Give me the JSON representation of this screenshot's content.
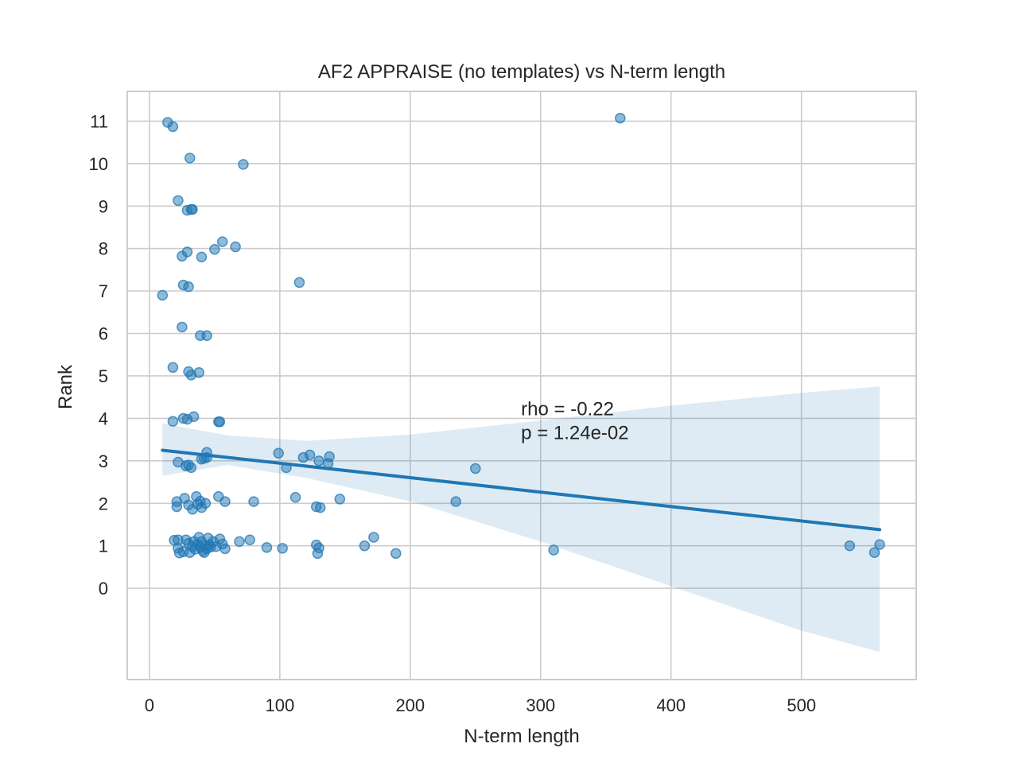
{
  "chart_data": {
    "type": "scatter",
    "title": "AF2 APPRAISE (no templates) vs N-term length",
    "xlabel": "N-term length",
    "ylabel": "Rank",
    "xlim": [
      -17,
      588
    ],
    "ylim": [
      -2.15,
      11.7
    ],
    "xticks": [
      0,
      100,
      200,
      300,
      400,
      500
    ],
    "yticks": [
      0,
      1,
      2,
      3,
      4,
      5,
      6,
      7,
      8,
      9,
      10,
      11
    ],
    "grid": true,
    "annotation": {
      "line1": "rho = -0.22",
      "line2": "p = 1.24e-02",
      "x": 285,
      "y": 4.3
    },
    "colors": {
      "points": "#1f77b4",
      "regression_line": "#1f77b4",
      "ci_band": "#1f77b4",
      "grid": "#cccccc",
      "spine": "#cccccc",
      "text": "#262626"
    },
    "regression": {
      "x": [
        10,
        560
      ],
      "y": [
        3.25,
        1.38
      ],
      "ci": [
        {
          "x": 10,
          "lo": 2.65,
          "hi": 3.88
        },
        {
          "x": 60,
          "lo": 2.9,
          "hi": 3.6
        },
        {
          "x": 120,
          "lo": 2.6,
          "hi": 3.47
        },
        {
          "x": 200,
          "lo": 2.05,
          "hi": 3.62
        },
        {
          "x": 300,
          "lo": 1.1,
          "hi": 3.95
        },
        {
          "x": 400,
          "lo": 0.05,
          "hi": 4.3
        },
        {
          "x": 500,
          "lo": -1.0,
          "hi": 4.6
        },
        {
          "x": 560,
          "lo": -1.5,
          "hi": 4.75
        }
      ]
    },
    "points": [
      {
        "x": 14,
        "y": 10.97
      },
      {
        "x": 18,
        "y": 10.87
      },
      {
        "x": 31,
        "y": 10.13
      },
      {
        "x": 72,
        "y": 9.98
      },
      {
        "x": 361,
        "y": 11.07
      },
      {
        "x": 22,
        "y": 9.13
      },
      {
        "x": 29,
        "y": 8.9
      },
      {
        "x": 32,
        "y": 8.92
      },
      {
        "x": 33,
        "y": 8.92
      },
      {
        "x": 56,
        "y": 8.16
      },
      {
        "x": 66,
        "y": 8.04
      },
      {
        "x": 50,
        "y": 7.98
      },
      {
        "x": 29,
        "y": 7.92
      },
      {
        "x": 25,
        "y": 7.82
      },
      {
        "x": 40,
        "y": 7.8
      },
      {
        "x": 115,
        "y": 7.2
      },
      {
        "x": 26,
        "y": 7.14
      },
      {
        "x": 30,
        "y": 7.1
      },
      {
        "x": 10,
        "y": 6.9
      },
      {
        "x": 25,
        "y": 6.15
      },
      {
        "x": 39,
        "y": 5.95
      },
      {
        "x": 44,
        "y": 5.95
      },
      {
        "x": 18,
        "y": 5.2
      },
      {
        "x": 30,
        "y": 5.1
      },
      {
        "x": 38,
        "y": 5.08
      },
      {
        "x": 32,
        "y": 5.02
      },
      {
        "x": 18,
        "y": 3.93
      },
      {
        "x": 26,
        "y": 4.0
      },
      {
        "x": 29,
        "y": 3.98
      },
      {
        "x": 34,
        "y": 4.04
      },
      {
        "x": 53,
        "y": 3.92
      },
      {
        "x": 54,
        "y": 3.92
      },
      {
        "x": 44,
        "y": 3.2
      },
      {
        "x": 42,
        "y": 3.06
      },
      {
        "x": 44,
        "y": 3.08
      },
      {
        "x": 40,
        "y": 3.04
      },
      {
        "x": 22,
        "y": 2.97
      },
      {
        "x": 28,
        "y": 2.88
      },
      {
        "x": 30,
        "y": 2.9
      },
      {
        "x": 32,
        "y": 2.84
      },
      {
        "x": 99,
        "y": 3.18
      },
      {
        "x": 105,
        "y": 2.84
      },
      {
        "x": 118,
        "y": 3.08
      },
      {
        "x": 123,
        "y": 3.14
      },
      {
        "x": 130,
        "y": 3.0
      },
      {
        "x": 137,
        "y": 2.94
      },
      {
        "x": 138,
        "y": 3.1
      },
      {
        "x": 250,
        "y": 2.82
      },
      {
        "x": 235,
        "y": 2.04
      },
      {
        "x": 21,
        "y": 2.04
      },
      {
        "x": 21,
        "y": 1.92
      },
      {
        "x": 27,
        "y": 2.12
      },
      {
        "x": 30,
        "y": 1.96
      },
      {
        "x": 33,
        "y": 1.86
      },
      {
        "x": 36,
        "y": 2.16
      },
      {
        "x": 37,
        "y": 1.98
      },
      {
        "x": 39,
        "y": 2.05
      },
      {
        "x": 40,
        "y": 1.9
      },
      {
        "x": 43,
        "y": 2.0
      },
      {
        "x": 53,
        "y": 2.16
      },
      {
        "x": 58,
        "y": 2.04
      },
      {
        "x": 80,
        "y": 2.04
      },
      {
        "x": 112,
        "y": 2.14
      },
      {
        "x": 128,
        "y": 1.92
      },
      {
        "x": 131,
        "y": 1.9
      },
      {
        "x": 146,
        "y": 2.1
      },
      {
        "x": 19,
        "y": 1.13
      },
      {
        "x": 22,
        "y": 1.14
      },
      {
        "x": 22,
        "y": 0.94
      },
      {
        "x": 23,
        "y": 0.83
      },
      {
        "x": 26,
        "y": 0.86
      },
      {
        "x": 28,
        "y": 1.14
      },
      {
        "x": 30,
        "y": 1.06
      },
      {
        "x": 31,
        "y": 0.84
      },
      {
        "x": 33,
        "y": 0.98
      },
      {
        "x": 34,
        "y": 1.1
      },
      {
        "x": 35,
        "y": 0.92
      },
      {
        "x": 37,
        "y": 1.03
      },
      {
        "x": 38,
        "y": 1.2
      },
      {
        "x": 39,
        "y": 0.96
      },
      {
        "x": 40,
        "y": 1.1
      },
      {
        "x": 41,
        "y": 0.88
      },
      {
        "x": 42,
        "y": 0.84
      },
      {
        "x": 43,
        "y": 1.0
      },
      {
        "x": 44,
        "y": 0.93
      },
      {
        "x": 45,
        "y": 1.18
      },
      {
        "x": 46,
        "y": 1.02
      },
      {
        "x": 47,
        "y": 0.97
      },
      {
        "x": 49,
        "y": 1.1
      },
      {
        "x": 51,
        "y": 0.98
      },
      {
        "x": 54,
        "y": 1.16
      },
      {
        "x": 56,
        "y": 1.04
      },
      {
        "x": 58,
        "y": 0.93
      },
      {
        "x": 69,
        "y": 1.1
      },
      {
        "x": 77,
        "y": 1.14
      },
      {
        "x": 90,
        "y": 0.96
      },
      {
        "x": 102,
        "y": 0.94
      },
      {
        "x": 128,
        "y": 1.02
      },
      {
        "x": 130,
        "y": 0.95
      },
      {
        "x": 129,
        "y": 0.82
      },
      {
        "x": 165,
        "y": 1.0
      },
      {
        "x": 172,
        "y": 1.2
      },
      {
        "x": 189,
        "y": 0.82
      },
      {
        "x": 310,
        "y": 0.9
      },
      {
        "x": 537,
        "y": 1.0
      },
      {
        "x": 556,
        "y": 0.84
      },
      {
        "x": 560,
        "y": 1.03
      }
    ]
  }
}
